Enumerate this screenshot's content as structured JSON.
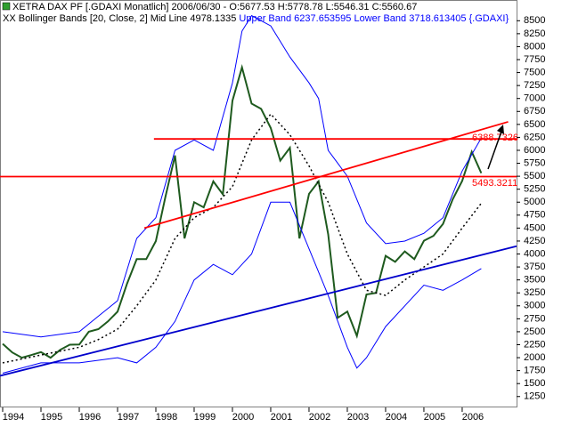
{
  "chart_data": {
    "type": "line",
    "title": "XETRA DAX PF [.GDAXI Monatlich] 2006/06/30 - O:5677.53 H:5778.78 L:5546.31 C:5560.67",
    "subtitle": [
      "XX Bollinger Bands [20, Close, 2] Mid Line 4978.1335",
      "Upper Band 6237.653595 Lower Band 3718.613405 {.GDAXI}"
    ],
    "subtitle_colors": [
      "#000000",
      "#0000ff"
    ],
    "xlim": [
      1993.93,
      2007.42
    ],
    "ylim": [
      1040,
      8900
    ],
    "xticks": [
      1994,
      1995,
      1996,
      1997,
      1998,
      1999,
      2000,
      2001,
      2002,
      2003,
      2004,
      2005,
      2006
    ],
    "yticks": [
      1250,
      1500,
      1750,
      2000,
      2250,
      2500,
      2750,
      3000,
      3250,
      3500,
      3750,
      4000,
      4250,
      4500,
      4750,
      5000,
      5250,
      5500,
      5750,
      6000,
      6250,
      6500,
      6750,
      7000,
      7250,
      7500,
      7750,
      8000,
      8250,
      8500
    ],
    "series": [
      {
        "name": ".GDAXI",
        "color": "#1e5a1e",
        "width": 2,
        "dash": "none",
        "x": [
          1994.0,
          1994.25,
          1994.5,
          1994.75,
          1995.0,
          1995.25,
          1995.5,
          1995.75,
          1996.0,
          1996.25,
          1996.5,
          1996.75,
          1997.0,
          1997.25,
          1997.5,
          1997.75,
          1998.0,
          1998.25,
          1998.5,
          1998.75,
          1999.0,
          1999.25,
          1999.5,
          1999.75,
          2000.0,
          2000.25,
          2000.5,
          2000.75,
          2001.0,
          2001.25,
          2001.5,
          2001.75,
          2002.0,
          2002.25,
          2002.5,
          2002.75,
          2003.0,
          2003.25,
          2003.5,
          2003.75,
          2004.0,
          2004.25,
          2004.5,
          2004.75,
          2005.0,
          2005.25,
          2005.5,
          2005.75,
          2006.0,
          2006.25,
          2006.5
        ],
        "values": [
          2267,
          2100,
          2000,
          2050,
          2107,
          2000,
          2150,
          2250,
          2254,
          2500,
          2550,
          2700,
          2889,
          3430,
          3900,
          3900,
          4250,
          5100,
          5900,
          4300,
          5000,
          4900,
          5400,
          5150,
          6958,
          7600,
          6900,
          6800,
          6430,
          5800,
          6050,
          4300,
          5160,
          5400,
          4380,
          2770,
          2890,
          2420,
          3220,
          3250,
          3965,
          3850,
          4050,
          3900,
          4256,
          4350,
          4580,
          5050,
          5408,
          5970,
          5560
        ]
      },
      {
        "name": "Upper Band",
        "color": "#0000ff",
        "width": 1,
        "dash": "none",
        "x": [
          1994.0,
          1995.0,
          1996.0,
          1996.5,
          1997.0,
          1997.5,
          1998.0,
          1998.5,
          1999.0,
          1999.5,
          2000.0,
          2000.25,
          2000.5,
          2001.0,
          2001.5,
          2002.0,
          2002.25,
          2002.5,
          2003.0,
          2003.5,
          2004.0,
          2004.5,
          2005.0,
          2005.5,
          2006.0,
          2006.5
        ],
        "values": [
          2500,
          2400,
          2500,
          2800,
          3100,
          4300,
          4700,
          6000,
          6200,
          6000,
          7300,
          8300,
          8600,
          8400,
          7800,
          7300,
          7000,
          6000,
          5500,
          4600,
          4200,
          4250,
          4400,
          4700,
          5600,
          6237.653595
        ]
      },
      {
        "name": "Mid Line",
        "color": "#000000",
        "width": 1.5,
        "dash": "2 3",
        "x": [
          1994.0,
          1995.0,
          1996.0,
          1996.5,
          1997.0,
          1997.5,
          1998.0,
          1998.5,
          1999.0,
          1999.5,
          2000.0,
          2000.5,
          2001.0,
          2001.5,
          2002.0,
          2002.5,
          2003.0,
          2003.5,
          2004.0,
          2004.5,
          2005.0,
          2005.5,
          2006.0,
          2006.5
        ],
        "values": [
          1900,
          2050,
          2200,
          2350,
          2550,
          3000,
          3500,
          4300,
          4700,
          4900,
          5300,
          6200,
          6700,
          6300,
          5700,
          5000,
          4000,
          3300,
          3200,
          3500,
          3750,
          4000,
          4500,
          4978.1335
        ]
      },
      {
        "name": "Lower Band",
        "color": "#0000ff",
        "width": 1,
        "dash": "none",
        "x": [
          1994.0,
          1995.0,
          1996.0,
          1996.5,
          1997.0,
          1997.5,
          1998.0,
          1998.5,
          1999.0,
          1999.5,
          2000.0,
          2000.5,
          2001.0,
          2001.5,
          2002.0,
          2002.5,
          2003.0,
          2003.25,
          2003.5,
          2004.0,
          2004.5,
          2005.0,
          2005.5,
          2006.0,
          2006.5
        ],
        "values": [
          1700,
          1900,
          1900,
          1950,
          2000,
          1900,
          2200,
          2700,
          3500,
          3800,
          3600,
          4000,
          5000,
          5000,
          4100,
          3200,
          2200,
          1800,
          2000,
          2600,
          3000,
          3400,
          3300,
          3500,
          3718.613405
        ]
      }
    ],
    "trendlines": [
      {
        "color": "#ff0000",
        "x": [
          1997.95,
          2007.42
        ],
        "y": [
          6220,
          6220
        ]
      },
      {
        "color": "#ff0000",
        "x": [
          1993.93,
          2007.42
        ],
        "y": [
          5493.3211,
          5493.3211
        ]
      },
      {
        "color": "#ff0000",
        "x": [
          1997.7,
          2007.2
        ],
        "y": [
          4500,
          6550
        ]
      },
      {
        "color": "#0000cc",
        "x": [
          1993.93,
          2007.42
        ],
        "y": [
          1650,
          4150
        ]
      }
    ],
    "annotations": [
      "6388.7326",
      "5493.3211"
    ],
    "annotation_color": "#ff0000"
  }
}
